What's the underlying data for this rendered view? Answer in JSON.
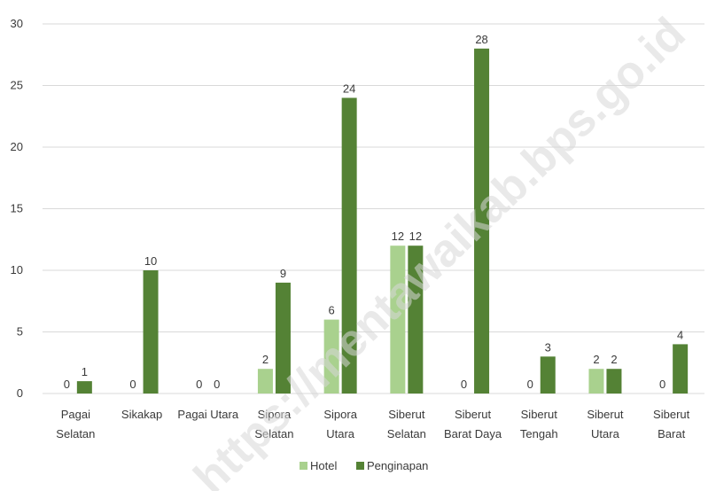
{
  "watermark": "https://mentawaikab.bps.go.id",
  "chart_data": {
    "type": "bar",
    "title": "",
    "xlabel": "",
    "ylabel": "",
    "ylim": [
      0,
      30
    ],
    "yticks": [
      0,
      5,
      10,
      15,
      20,
      25,
      30
    ],
    "grid": true,
    "legend_position": "bottom",
    "categories": [
      [
        "Pagai",
        "Selatan"
      ],
      [
        "Sikakap"
      ],
      [
        "Pagai Utara"
      ],
      [
        "Sipora",
        "Selatan"
      ],
      [
        "Sipora",
        "Utara"
      ],
      [
        "Siberut",
        "Selatan"
      ],
      [
        "Siberut",
        "Barat Daya"
      ],
      [
        "Siberut",
        "Tengah"
      ],
      [
        "Siberut",
        "Utara"
      ],
      [
        "Siberut",
        "Barat"
      ]
    ],
    "series": [
      {
        "name": "Hotel",
        "color": "#a9d18e",
        "values": [
          0,
          0,
          0,
          2,
          6,
          12,
          0,
          0,
          2,
          0
        ]
      },
      {
        "name": "Penginapan",
        "color": "#548235",
        "values": [
          1,
          10,
          0,
          9,
          24,
          12,
          28,
          3,
          2,
          4
        ]
      }
    ]
  }
}
